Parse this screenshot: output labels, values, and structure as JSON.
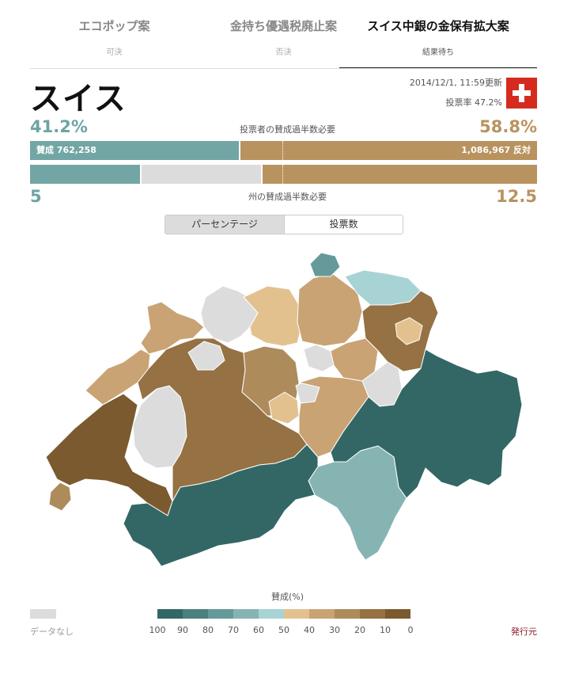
{
  "tabs": [
    {
      "title": "エコポップ案",
      "status": "可決",
      "active": false
    },
    {
      "title": "金持ち優遇税廃止案",
      "status": "否決",
      "active": false
    },
    {
      "title": "スイス中銀の金保有拡大案",
      "status": "結果待ち",
      "active": true
    }
  ],
  "header": {
    "region": "スイス",
    "updated": "2014/12/1, 11:59更新",
    "turnout": "投票率 47.2%"
  },
  "popular": {
    "yes_pct_label": "41.2%",
    "no_pct_label": "58.8%",
    "yes_share": 0.412,
    "label": "投票者の賛成過半数必要",
    "yes_bar_label": "賛成 762,258",
    "no_bar_label": "1,086,967 反対"
  },
  "cantons": {
    "yes_label": "5",
    "no_label": "12.5",
    "label": "州の賛成過半数必要",
    "yes_share": 0.217,
    "grey_share": 0.239
  },
  "toggle": {
    "percent": "パーセンテージ",
    "votes": "投票数"
  },
  "colors": {
    "yes": "#72a6a4",
    "no": "#b9935f",
    "nodata": "#dcdcdc",
    "scale": [
      "#336765",
      "#4a807d",
      "#66999a",
      "#86b4b3",
      "#a8d3d4",
      "#e3c18f",
      "#c9a374",
      "#ae8b5b",
      "#957143",
      "#7b5a2f"
    ]
  },
  "map_fills": [
    "#336765",
    "#4a807d",
    "#66999a",
    "#86b4b3",
    "#a8d3d4",
    "#e3c18f",
    "#c9a374",
    "#ae8b5b",
    "#957143",
    "#7b5a2f",
    "#dcdcdc"
  ],
  "legend": {
    "title": "賛成(%)",
    "nodata": "データなし",
    "ticks": [
      "100",
      "90",
      "80",
      "70",
      "60",
      "50",
      "40",
      "30",
      "20",
      "10",
      "0"
    ],
    "publisher": "発行元"
  }
}
